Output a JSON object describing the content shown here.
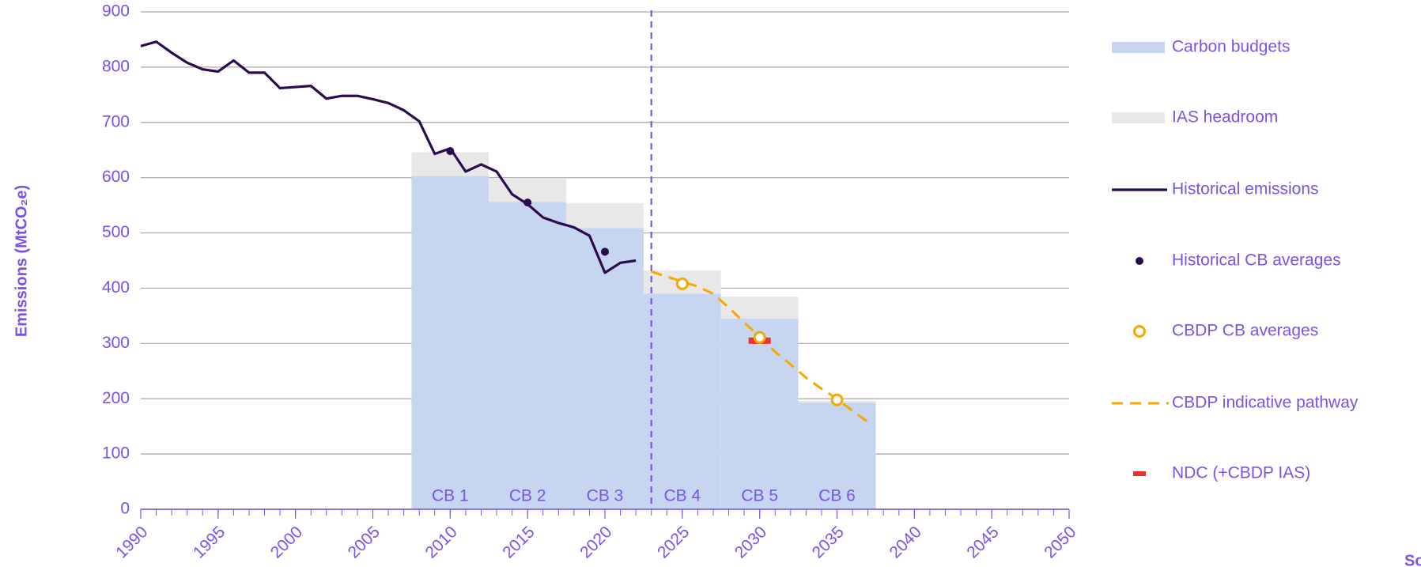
{
  "chart_data": {
    "type": "combo",
    "y_label": "Emissions (MtCO₂e)",
    "footnote": "So",
    "xlim": [
      1990,
      2050
    ],
    "xticks": [
      1990,
      1995,
      2000,
      2005,
      2010,
      2015,
      2020,
      2025,
      2030,
      2035,
      2040,
      2045,
      2050
    ],
    "xminorticks": [
      1990,
      1991,
      1992,
      1993,
      1994,
      1995,
      1996,
      1997,
      1998,
      1999,
      2000,
      2001,
      2002,
      2003,
      2004,
      2005,
      2006,
      2007,
      2008,
      2009,
      2010,
      2011,
      2012,
      2013,
      2014,
      2015,
      2016,
      2017,
      2018,
      2019,
      2020,
      2021,
      2022,
      2023,
      2024,
      2025,
      2026,
      2027,
      2028,
      2029,
      2030,
      2031,
      2032,
      2033,
      2034,
      2035,
      2036,
      2037,
      2038,
      2039,
      2040,
      2041,
      2042,
      2043,
      2044,
      2045,
      2046,
      2047,
      2048,
      2049,
      2050
    ],
    "ylim": [
      0,
      900
    ],
    "yticks": [
      0,
      100,
      200,
      300,
      400,
      500,
      600,
      700,
      800,
      900
    ],
    "grid": true,
    "vline": 2023,
    "budgets": {
      "name": "Carbon budgets",
      "color": "#c6d6f0",
      "labels": [
        "CB 1",
        "CB 2",
        "CB 3",
        "CB 4",
        "CB 5",
        "CB 6"
      ],
      "start": [
        2008,
        2013,
        2018,
        2023,
        2028,
        2033
      ],
      "end": [
        2012,
        2017,
        2022,
        2027,
        2032,
        2037
      ],
      "values": [
        603,
        556,
        509,
        390,
        345,
        193
      ]
    },
    "headroom": {
      "name": "IAS headroom",
      "color": "#e8e8e8",
      "values": [
        43,
        42,
        45,
        42,
        40,
        3
      ]
    },
    "historical": {
      "name": "Historical emissions",
      "color": "#2b0b4f",
      "x": [
        1990,
        1991,
        1992,
        1993,
        1994,
        1995,
        1996,
        1997,
        1998,
        1999,
        2000,
        2001,
        2002,
        2003,
        2004,
        2005,
        2006,
        2007,
        2008,
        2009,
        2010,
        2011,
        2012,
        2013,
        2014,
        2015,
        2016,
        2017,
        2018,
        2019,
        2020,
        2021,
        2022
      ],
      "values": [
        838,
        846,
        826,
        808,
        796,
        792,
        812,
        790,
        790,
        762,
        764,
        766,
        743,
        748,
        748,
        742,
        735,
        722,
        702,
        643,
        653,
        611,
        624,
        611,
        570,
        552,
        528,
        518,
        510,
        495,
        428,
        446,
        450
      ]
    },
    "hist_avg": {
      "name": "Historical CB averages",
      "color": "#2b0b4f",
      "x": [
        2010,
        2015,
        2020
      ],
      "values": [
        648,
        555,
        466
      ]
    },
    "cbdp_avg": {
      "name": "CBDP CB averages",
      "color": "#f5a800",
      "x": [
        2025,
        2030,
        2035
      ],
      "values": [
        408,
        311,
        198
      ]
    },
    "pathway": {
      "name": "CBDP indicative pathway",
      "color": "#f5a800",
      "x": [
        2023,
        2024,
        2025,
        2026,
        2027,
        2028,
        2029,
        2030,
        2031,
        2032,
        2033,
        2034,
        2035,
        2036,
        2037
      ],
      "values": [
        430,
        421,
        412,
        403,
        390,
        365,
        338,
        312,
        285,
        262,
        238,
        218,
        200,
        178,
        158
      ]
    },
    "ndc": {
      "name": "NDC (+CBDP IAS)",
      "color": "#e8332a",
      "x": [
        2030
      ],
      "values": [
        305
      ]
    },
    "text_color": "#7b52e8"
  }
}
